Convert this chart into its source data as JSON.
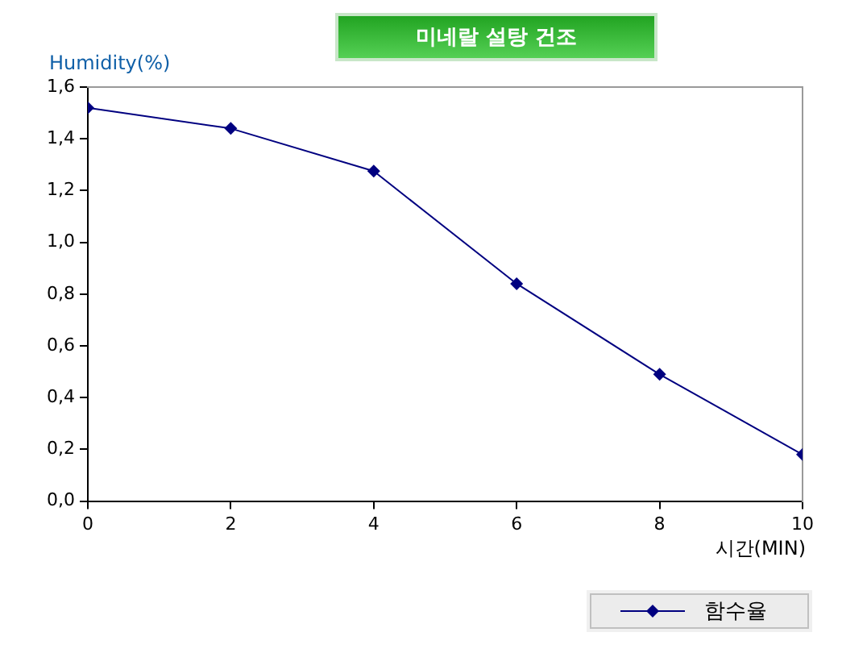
{
  "chart_data": {
    "type": "line",
    "title": "미네랄 설탕 건조",
    "xlabel": "시간(MIN)",
    "ylabel": "Humidity(%)",
    "x": [
      0,
      2,
      4,
      6,
      8,
      10
    ],
    "series": [
      {
        "name": "함수율",
        "color": "#000080",
        "values": [
          1.52,
          1.44,
          1.275,
          0.84,
          0.49,
          0.18
        ]
      }
    ],
    "xlim": [
      0,
      10
    ],
    "xticks": [
      0,
      2,
      4,
      6,
      8,
      10
    ],
    "ylim": [
      0,
      1.6
    ],
    "yticks": [
      {
        "value": 0,
        "label": "0,0"
      },
      {
        "value": 0.2,
        "label": "0,2"
      },
      {
        "value": 0.4,
        "label": "0,4"
      },
      {
        "value": 0.6,
        "label": "0,6"
      },
      {
        "value": 0.8,
        "label": "0,8"
      },
      {
        "value": 1.0,
        "label": "1,0"
      },
      {
        "value": 1.2,
        "label": "1,2"
      },
      {
        "value": 1.4,
        "label": "1,4"
      },
      {
        "value": 1.6,
        "label": "1,6"
      }
    ],
    "grid": false,
    "legend": "bottom right",
    "marker": "diamond",
    "line_style": "solid"
  }
}
